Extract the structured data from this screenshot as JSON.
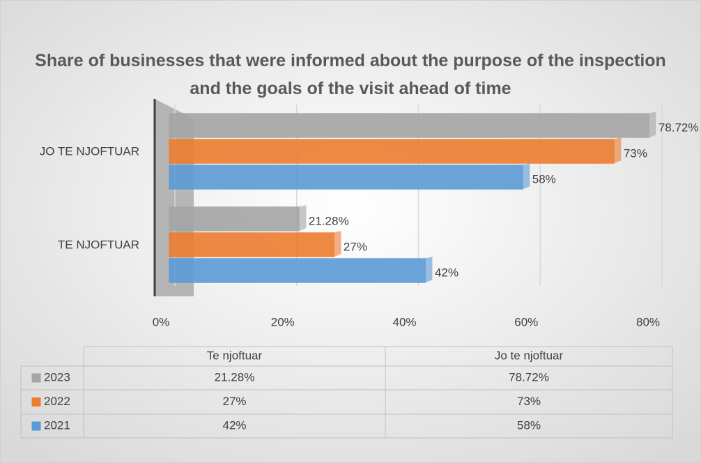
{
  "chart_data": {
    "type": "bar",
    "orientation": "horizontal",
    "title": "Share of businesses that were informed about the purpose of the inspection and the goals of the visit ahead of time",
    "categories": [
      "TE NJOFTUAR",
      "JO TE NJOFTUAR"
    ],
    "series": [
      {
        "name": "2023",
        "color": "#a5a5a5",
        "values": [
          21.28,
          78.72
        ],
        "value_labels": [
          "21.28%",
          "78.72%"
        ]
      },
      {
        "name": "2022",
        "color": "#ed7d31",
        "values": [
          27,
          73
        ],
        "value_labels": [
          "27%",
          "73%"
        ]
      },
      {
        "name": "2021",
        "color": "#5b9bd5",
        "values": [
          42,
          58
        ],
        "value_labels": [
          "42%",
          "58%"
        ]
      }
    ],
    "xlim": [
      0,
      80
    ],
    "xticks": [
      {
        "value": 0,
        "label": "0%"
      },
      {
        "value": 20,
        "label": "20%"
      },
      {
        "value": 40,
        "label": "40%"
      },
      {
        "value": 60,
        "label": "60%"
      },
      {
        "value": 80,
        "label": "80%"
      }
    ],
    "grid": true,
    "table_columns": [
      "Te njoftuar",
      "Jo te njoftuar"
    ]
  }
}
